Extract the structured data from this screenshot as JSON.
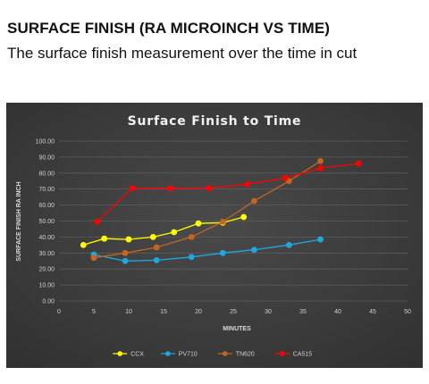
{
  "page": {
    "heading": "SURFACE FINISH (RA MICROINCH VS TIME)",
    "subheading": "The surface finish measurement over the time in cut"
  },
  "chart_data": {
    "type": "line",
    "title": "Surface Finish to Time",
    "xlabel": "MINUTES",
    "ylabel": "SURFACE FINISH RA INCH",
    "xlim": [
      0,
      50
    ],
    "ylim": [
      0,
      100
    ],
    "x_ticks": [
      "0",
      "5",
      "10",
      "15",
      "20",
      "25",
      "30",
      "35",
      "40",
      "45",
      "50"
    ],
    "y_ticks": [
      "0.00",
      "10.00",
      "20.00",
      "30.00",
      "40.00",
      "50.00",
      "60.00",
      "70.00",
      "80.00",
      "90.00",
      "100.00"
    ],
    "grid": true,
    "legend_position": "bottom",
    "background": "#3f3f3f",
    "series": [
      {
        "name": "CCX",
        "color": "#ffff00",
        "points": [
          [
            3.5,
            35
          ],
          [
            6.5,
            39
          ],
          [
            10,
            38.5
          ],
          [
            13.5,
            40
          ],
          [
            16.5,
            43
          ],
          [
            20,
            48.5
          ],
          [
            23.5,
            49
          ],
          [
            26.5,
            52.5
          ]
        ]
      },
      {
        "name": "PV710",
        "color": "#1ea7e1",
        "points": [
          [
            5,
            29
          ],
          [
            9.5,
            25
          ],
          [
            14,
            25.5
          ],
          [
            19,
            27.5
          ],
          [
            23.5,
            30
          ],
          [
            28,
            32
          ],
          [
            33,
            35
          ],
          [
            37.5,
            38.5
          ]
        ]
      },
      {
        "name": "TN620",
        "color": "#c4661f",
        "points": [
          [
            5,
            27
          ],
          [
            9.5,
            30
          ],
          [
            14,
            33.5
          ],
          [
            19,
            40
          ],
          [
            23.5,
            49.5
          ],
          [
            28,
            62.5
          ],
          [
            33,
            75
          ],
          [
            37.5,
            87.5
          ]
        ]
      },
      {
        "name": "CA515",
        "color": "#ff0000",
        "points": [
          [
            5.5,
            49.5
          ],
          [
            10.5,
            70.5
          ],
          [
            16,
            70.5
          ],
          [
            21.5,
            70.5
          ],
          [
            27,
            73
          ],
          [
            32.5,
            77
          ],
          [
            37.5,
            83
          ],
          [
            43,
            86
          ]
        ]
      }
    ]
  }
}
